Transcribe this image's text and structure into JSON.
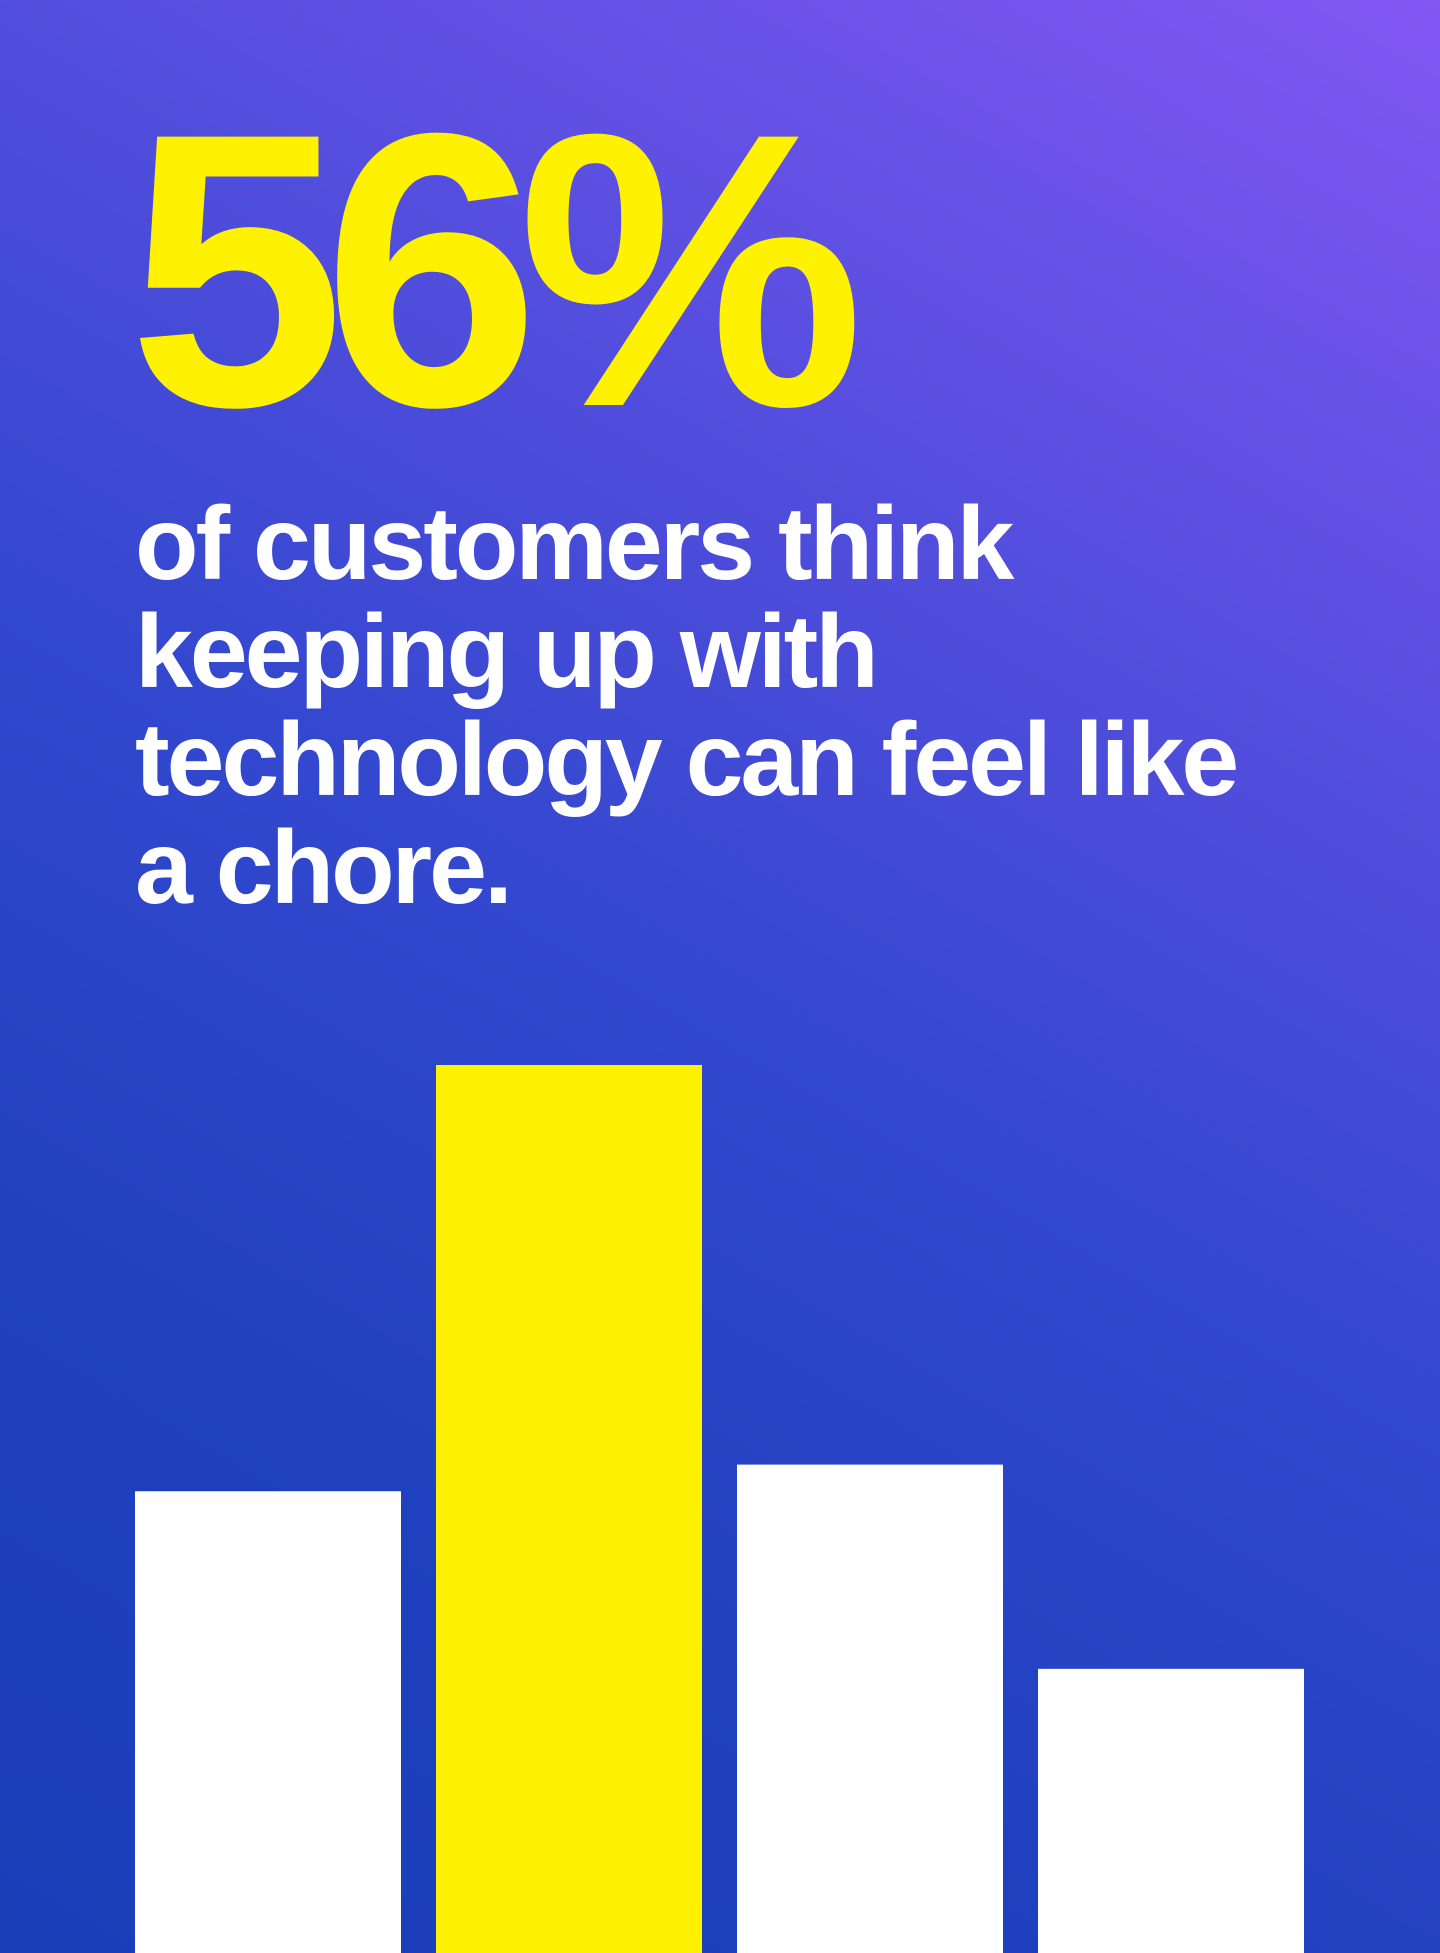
{
  "headline": {
    "stat": "56%",
    "caption": "of customers think keeping up with technology can feel like a chore."
  },
  "colors": {
    "accent": "#fff200",
    "bar": "#ffffff",
    "background_top": "#8257f2",
    "background_bottom": "#1a3db8"
  },
  "chart_data": {
    "type": "bar",
    "categories": [
      "",
      "",
      "",
      ""
    ],
    "values": [
      52,
      100,
      55,
      32
    ],
    "highlight_index": 1,
    "ylim": [
      0,
      100
    ],
    "axes_visible": false,
    "grid": false,
    "title": "",
    "xlabel": "",
    "ylabel": ""
  }
}
